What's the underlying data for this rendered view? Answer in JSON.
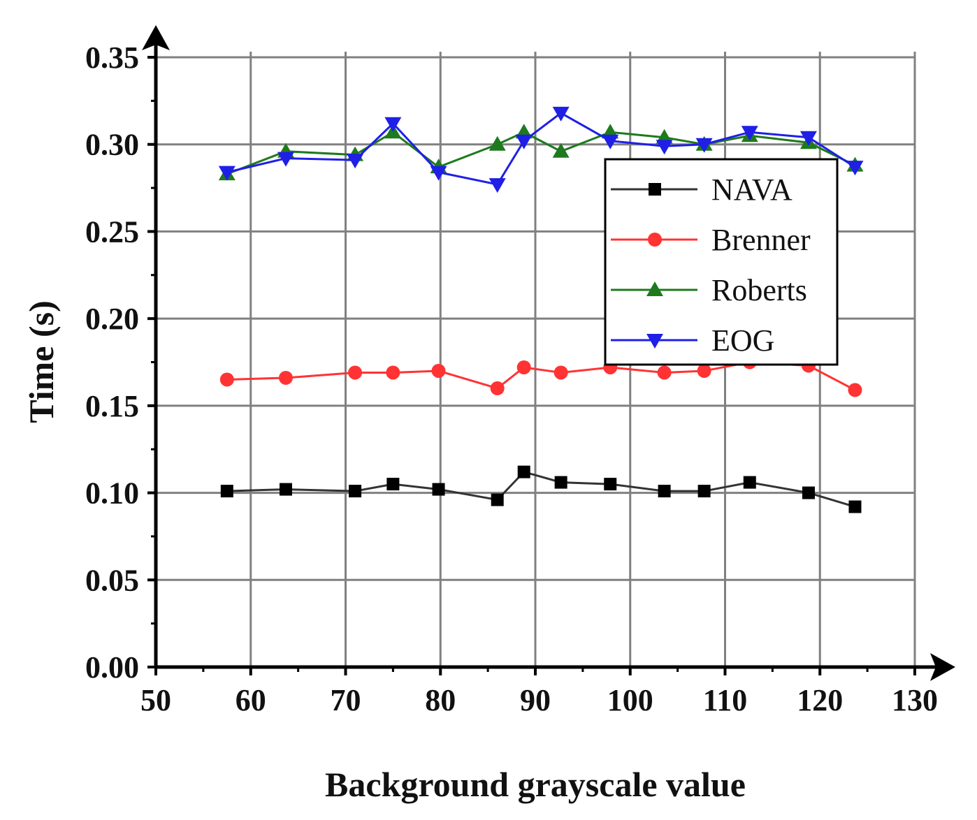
{
  "chart_data": {
    "type": "line",
    "title": "",
    "xlabel": "Background grayscale value",
    "ylabel": "Time (s)",
    "xlim": [
      50,
      130
    ],
    "ylim": [
      0,
      0.35
    ],
    "xticks": [
      "50",
      "60",
      "70",
      "80",
      "90",
      "100",
      "110",
      "120",
      "130"
    ],
    "yticks": [
      "0.00",
      "0.05",
      "0.10",
      "0.15",
      "0.20",
      "0.25",
      "0.30",
      "0.35"
    ],
    "grid": true,
    "legend_position": "top-right",
    "x": [
      57.5,
      63.7,
      71,
      75,
      79.8,
      86,
      88.8,
      92.7,
      97.9,
      103.6,
      107.8,
      112.6,
      118.8,
      123.7
    ],
    "series": [
      {
        "name": "NAVA",
        "color": "#333333",
        "marker": "square",
        "values": [
          0.101,
          0.102,
          0.101,
          0.105,
          0.102,
          0.096,
          0.112,
          0.106,
          0.105,
          0.101,
          0.101,
          0.106,
          0.1,
          0.092
        ]
      },
      {
        "name": "Brenner",
        "color": "#ff3333",
        "marker": "circle",
        "values": [
          0.165,
          0.166,
          0.169,
          0.169,
          0.17,
          0.16,
          0.172,
          0.169,
          0.172,
          0.169,
          0.17,
          0.175,
          0.173,
          0.159
        ]
      },
      {
        "name": "Roberts",
        "color": "#1e7a1e",
        "marker": "triangle-up",
        "values": [
          0.283,
          0.296,
          0.294,
          0.307,
          0.287,
          0.3,
          0.307,
          0.296,
          0.307,
          0.304,
          0.3,
          0.305,
          0.301,
          0.288
        ]
      },
      {
        "name": "EOG",
        "color": "#1f1fe6",
        "marker": "triangle-down",
        "values": [
          0.284,
          0.292,
          0.291,
          0.312,
          0.284,
          0.277,
          0.302,
          0.318,
          0.302,
          0.299,
          0.3,
          0.307,
          0.304,
          0.287
        ]
      }
    ]
  }
}
